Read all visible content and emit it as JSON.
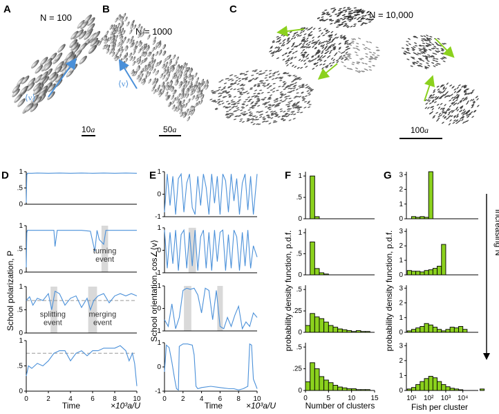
{
  "panels": {
    "A": {
      "label": "A",
      "n_label": "N = 100",
      "scale": "10",
      "vector_label": "⟨v⟩"
    },
    "B": {
      "label": "B",
      "n_label": "N = 1000",
      "scale": "50",
      "vector_label": "⟨v⟩"
    },
    "C": {
      "label": "C",
      "n_label": "N = 10,000",
      "scale": "100"
    },
    "D": {
      "label": "D"
    },
    "E": {
      "label": "E"
    },
    "F": {
      "label": "F"
    },
    "G": {
      "label": "G"
    }
  },
  "scale_unit": "a",
  "increasing_label": "increasing N",
  "colors": {
    "series": "#4a90d9",
    "bar": "#8bd11d",
    "arrow_blue": "#4a90d9",
    "arrow_green": "#8bd11d",
    "shade": "#d9d9d9"
  },
  "chart_data": [
    {
      "id": "D",
      "type": "line",
      "ylabel": "School polarization, P",
      "xlabel": "Time",
      "xunit": "×10³a/U",
      "xlim": [
        0,
        10
      ],
      "xticks": [
        "0",
        "2",
        "4",
        "6",
        "8",
        "10"
      ],
      "rows": [
        {
          "ylim": [
            0,
            1
          ],
          "yticks": [
            {
              "v": 0,
              "t": "0"
            },
            {
              "v": 0.5,
              "t": ".5"
            },
            {
              "v": 1,
              "t": "1"
            }
          ],
          "series": {
            "x": [
              0,
              0.05,
              0.1,
              0.5,
              1,
              2,
              3,
              4,
              5,
              6,
              7,
              8,
              9,
              10
            ],
            "y": [
              0.05,
              0.9,
              0.95,
              0.95,
              0.96,
              0.95,
              0.96,
              0.95,
              0.96,
              0.95,
              0.96,
              0.95,
              0.96,
              0.95
            ]
          },
          "shade": [],
          "threshold": null
        },
        {
          "ylim": [
            0,
            1
          ],
          "yticks": [
            {
              "v": 0,
              "t": "0"
            },
            {
              "v": 0.5,
              "t": ".5"
            },
            {
              "v": 1,
              "t": "1"
            }
          ],
          "series": {
            "x": [
              0,
              0.05,
              0.1,
              1,
              2,
              2.5,
              2.6,
              2.8,
              3,
              4,
              5,
              5.8,
              6.2,
              6.4,
              6.6,
              7,
              7.2,
              7.5,
              8,
              9,
              10
            ],
            "y": [
              0.1,
              0.85,
              0.9,
              0.9,
              0.9,
              0.9,
              0.55,
              0.9,
              0.9,
              0.9,
              0.9,
              0.88,
              0.45,
              0.9,
              0.7,
              0.6,
              0.9,
              0.9,
              0.9,
              0.9,
              0.9
            ]
          },
          "shade": [
            [
              6.8,
              7.4
            ]
          ],
          "threshold": null,
          "annotation": {
            "text": [
              "turning",
              "event"
            ],
            "x": 7.1,
            "y": 0.4
          }
        },
        {
          "ylim": [
            0,
            1
          ],
          "yticks": [
            {
              "v": 0,
              "t": "0"
            },
            {
              "v": 0.5,
              "t": ".5"
            },
            {
              "v": 1,
              "t": "1"
            }
          ],
          "series": {
            "x": [
              0,
              0.3,
              0.6,
              1,
              1.5,
              2,
              2.3,
              2.6,
              3,
              3.5,
              4,
              4.5,
              5,
              5.5,
              5.8,
              6.1,
              6.5,
              7,
              7.5,
              8,
              8.5,
              9,
              9.5,
              10
            ],
            "y": [
              0.7,
              0.78,
              0.6,
              0.75,
              0.7,
              0.85,
              0.5,
              0.9,
              0.85,
              0.6,
              0.75,
              0.8,
              0.55,
              0.75,
              0.5,
              0.7,
              0.8,
              0.85,
              0.65,
              0.8,
              0.85,
              0.8,
              0.85,
              0.8
            ]
          },
          "shade": [
            [
              2.2,
              2.8
            ],
            [
              5.6,
              6.4
            ]
          ],
          "threshold": 0.7,
          "annotation2": [
            {
              "text": [
                "splitting",
                "event"
              ],
              "x": 2.4,
              "y": 0.35
            },
            {
              "text": [
                "merging",
                "event"
              ],
              "x": 6.9,
              "y": 0.35
            }
          ]
        },
        {
          "ylim": [
            0,
            1
          ],
          "yticks": [
            {
              "v": 0,
              "t": "0"
            },
            {
              "v": 0.5,
              "t": ".5"
            },
            {
              "v": 1,
              "t": "1"
            }
          ],
          "series": {
            "x": [
              0,
              0.2,
              0.5,
              1,
              1.5,
              2,
              2.5,
              3,
              3.5,
              4,
              4.5,
              5,
              5.5,
              6,
              6.5,
              7,
              7.5,
              8,
              8.5,
              9,
              9.3,
              9.6,
              9.8,
              10
            ],
            "y": [
              0.3,
              0.5,
              0.45,
              0.55,
              0.5,
              0.6,
              0.75,
              0.8,
              0.8,
              0.6,
              0.75,
              0.8,
              0.7,
              0.8,
              0.8,
              0.85,
              0.85,
              0.85,
              0.9,
              0.8,
              0.6,
              0.75,
              0.55,
              0.1
            ]
          },
          "shade": [],
          "threshold": 0.75
        }
      ]
    },
    {
      "id": "E",
      "type": "line",
      "ylabel": "School orientation, cos∠⟨v⟩",
      "xlabel": "Time",
      "xunit": "×10³a/U",
      "xlim": [
        0,
        10
      ],
      "xticks": [
        "0",
        "2",
        "4",
        "6",
        "8",
        "10"
      ],
      "rows": [
        {
          "ylim": [
            -1,
            1
          ],
          "yticks": [
            {
              "v": -1,
              "t": "-1"
            },
            {
              "v": 0,
              "t": "0"
            },
            {
              "v": 1,
              "t": "1"
            }
          ],
          "series": {
            "x": [
              0,
              0.3,
              0.6,
              0.9,
              1.2,
              1.5,
              1.8,
              2.1,
              2.4,
              2.7,
              3,
              3.3,
              3.6,
              3.9,
              4.2,
              4.5,
              4.8,
              5.1,
              5.4,
              5.7,
              6,
              6.3,
              6.6,
              6.9,
              7.2,
              7.5,
              7.8,
              8.1,
              8.4,
              8.7,
              9,
              9.3,
              9.6,
              10
            ],
            "y": [
              -0.8,
              0.9,
              -0.5,
              0.8,
              -0.9,
              0.7,
              0.9,
              -0.8,
              0.5,
              0.9,
              -0.6,
              -0.9,
              0.8,
              -0.5,
              0.9,
              0.3,
              -0.9,
              0.9,
              -0.4,
              0.8,
              -0.9,
              0.9,
              0.6,
              -0.8,
              0.9,
              -0.3,
              0.7,
              -0.9,
              0.5,
              0.9,
              -0.7,
              0.8,
              -0.9,
              0.9
            ]
          },
          "shade": []
        },
        {
          "ylim": [
            -1,
            1
          ],
          "yticks": [
            {
              "v": -1,
              "t": "-1"
            },
            {
              "v": 0,
              "t": "0"
            },
            {
              "v": 1,
              "t": "1"
            }
          ],
          "series": {
            "x": [
              0,
              0.3,
              0.6,
              0.9,
              1.2,
              1.5,
              1.8,
              2.1,
              2.4,
              2.7,
              3,
              3.3,
              3.6,
              3.9,
              4.2,
              4.5,
              4.8,
              5.1,
              5.4,
              5.7,
              6,
              6.3,
              6.6,
              6.9,
              7.2,
              7.5,
              7.8,
              8.1,
              8.4,
              8.7,
              9,
              9.3,
              9.6,
              10
            ],
            "y": [
              0.9,
              -0.8,
              0.8,
              -0.6,
              0.9,
              -0.9,
              0.7,
              0.9,
              -0.8,
              0.8,
              -0.7,
              0.9,
              -0.9,
              0.6,
              0.9,
              -0.8,
              0.8,
              -0.9,
              0.9,
              -0.5,
              0.8,
              0.9,
              -0.9,
              0.7,
              -0.8,
              0.9,
              0.6,
              -0.9,
              0.8,
              -0.7,
              0.9,
              -0.8,
              0.2,
              -0.3
            ]
          },
          "shade": [
            [
              2.6,
              3.4
            ]
          ]
        },
        {
          "ylim": [
            -1,
            1
          ],
          "yticks": [
            {
              "v": -1,
              "t": "-1"
            },
            {
              "v": 0,
              "t": "0"
            },
            {
              "v": 1,
              "t": "1"
            }
          ],
          "series": {
            "x": [
              0,
              0.4,
              0.8,
              1.2,
              1.6,
              2,
              2.4,
              2.8,
              3.2,
              3.6,
              4,
              4.4,
              4.8,
              5.2,
              5.6,
              6,
              6.4,
              6.8,
              7.2,
              7.6,
              8,
              8.4,
              8.8,
              9.2,
              9.6,
              10
            ],
            "y": [
              -0.5,
              -0.8,
              0.2,
              -0.9,
              -0.4,
              0.8,
              0.9,
              0.85,
              0.9,
              0.6,
              -0.2,
              0.9,
              0.8,
              -0.5,
              0.8,
              -0.8,
              -0.9,
              -0.4,
              -0.8,
              -0.3,
              0.1,
              -0.9,
              -0.6,
              -0.8,
              -0.2,
              -0.4
            ]
          },
          "shade": [
            [
              2.1,
              2.9
            ],
            [
              5.7,
              6.3
            ]
          ]
        },
        {
          "ylim": [
            -1,
            1
          ],
          "yticks": [
            {
              "v": -1,
              "t": "-1"
            },
            {
              "v": 0,
              "t": "0"
            },
            {
              "v": 1,
              "t": "1"
            }
          ],
          "series": {
            "x": [
              0,
              0.2,
              0.5,
              0.8,
              1.1,
              1.3,
              1.5,
              1.6,
              2,
              2.5,
              3,
              3.2,
              3.4,
              3.6,
              4,
              5,
              6,
              7,
              7.5,
              8,
              8.5,
              9,
              9.2,
              9.4,
              9.6,
              10
            ],
            "y": [
              -0.2,
              0.9,
              0.8,
              0.2,
              -0.5,
              -0.9,
              -0.95,
              0.85,
              0.95,
              0.95,
              0.9,
              0.5,
              -0.8,
              -0.9,
              -0.85,
              -0.8,
              -0.85,
              -0.9,
              -0.9,
              -0.95,
              -0.9,
              -0.8,
              0.95,
              0.9,
              -0.5,
              -0.9
            ]
          },
          "shade": []
        }
      ]
    },
    {
      "id": "F",
      "type": "bar",
      "ylabel": "probability density function, p.d.f.",
      "xlabel": "Number of clusters",
      "xlim": [
        0,
        15
      ],
      "xticks": [
        "0",
        "5",
        "10",
        "15"
      ],
      "rows": [
        {
          "ylim": [
            0,
            1.1
          ],
          "yticks": [
            {
              "v": 0,
              "t": "0"
            },
            {
              "v": 0.5,
              "t": ".5"
            },
            {
              "v": 1,
              "t": "1"
            }
          ],
          "values": [
            0,
            1.0,
            0.05
          ]
        },
        {
          "ylim": [
            0,
            1.1
          ],
          "yticks": [
            {
              "v": 0,
              "t": "0"
            },
            {
              "v": 0.5,
              "t": ".5"
            },
            {
              "v": 1,
              "t": "1"
            }
          ],
          "values": [
            0,
            0.78,
            0.15,
            0.05,
            0.02
          ]
        },
        {
          "ylim": [
            0,
            0.55
          ],
          "yticks": [
            {
              "v": 0,
              "t": "0"
            },
            {
              "v": 0.25,
              "t": ".25"
            },
            {
              "v": 0.5,
              "t": ".5"
            }
          ],
          "values": [
            0.08,
            0.22,
            0.18,
            0.16,
            0.12,
            0.08,
            0.06,
            0.04,
            0.03,
            0.02,
            0.01,
            0.02,
            0.01,
            0.01,
            0.0
          ]
        },
        {
          "ylim": [
            0,
            0.55
          ],
          "yticks": [
            {
              "v": 0,
              "t": "0"
            },
            {
              "v": 0.25,
              "t": ".25"
            },
            {
              "v": 0.5,
              "t": ".5"
            }
          ],
          "values": [
            0.1,
            0.32,
            0.25,
            0.16,
            0.12,
            0.09,
            0.06,
            0.04,
            0.03,
            0.02,
            0.02,
            0.01,
            0.01,
            0.01,
            0.0
          ]
        }
      ]
    },
    {
      "id": "G",
      "type": "bar",
      "ylabel": "probability density function, p.d.f.",
      "xlabel": "Fish per cluster",
      "xscale": "log",
      "xlim": [
        0.7,
        4.9
      ],
      "xticks": [
        "10¹",
        "10²",
        "10³",
        "10⁴"
      ],
      "rows": [
        {
          "ylim": [
            0,
            3.2
          ],
          "yticks": [
            {
              "v": 0,
              "t": "0"
            },
            {
              "v": 1,
              "t": "1"
            },
            {
              "v": 2,
              "t": "2"
            },
            {
              "v": 3,
              "t": "3"
            }
          ],
          "values": [
            0,
            0.15,
            0.1,
            0.15,
            0.1,
            3.2
          ],
          "start": 0.75
        },
        {
          "ylim": [
            0,
            3.2
          ],
          "yticks": [
            {
              "v": 0,
              "t": "0"
            },
            {
              "v": 1,
              "t": "1"
            },
            {
              "v": 2,
              "t": "2"
            },
            {
              "v": 3,
              "t": "3"
            }
          ],
          "values": [
            0.3,
            0.25,
            0.25,
            0.2,
            0.3,
            0.35,
            0.45,
            0.6,
            2.1
          ],
          "start": 0.75
        },
        {
          "ylim": [
            0,
            3.2
          ],
          "yticks": [
            {
              "v": 0,
              "t": "0"
            },
            {
              "v": 1,
              "t": "1"
            },
            {
              "v": 2,
              "t": "2"
            },
            {
              "v": 3,
              "t": "3"
            }
          ],
          "values": [
            0.1,
            0.2,
            0.3,
            0.4,
            0.6,
            0.5,
            0.35,
            0.2,
            0.1,
            0.2,
            0.35,
            0.3,
            0.4,
            0.2
          ],
          "start": 0.75
        },
        {
          "ylim": [
            0,
            3.2
          ],
          "yticks": [
            {
              "v": 0,
              "t": "0"
            },
            {
              "v": 1,
              "t": "1"
            },
            {
              "v": 2,
              "t": "2"
            },
            {
              "v": 3,
              "t": "3"
            }
          ],
          "values": [
            0.1,
            0.2,
            0.4,
            0.6,
            0.8,
            0.95,
            0.85,
            0.6,
            0.4,
            0.25,
            0.15,
            0.1,
            0.05,
            0.0,
            0.0,
            0.0,
            0.0,
            0.1
          ],
          "start": 0.75
        }
      ]
    }
  ]
}
